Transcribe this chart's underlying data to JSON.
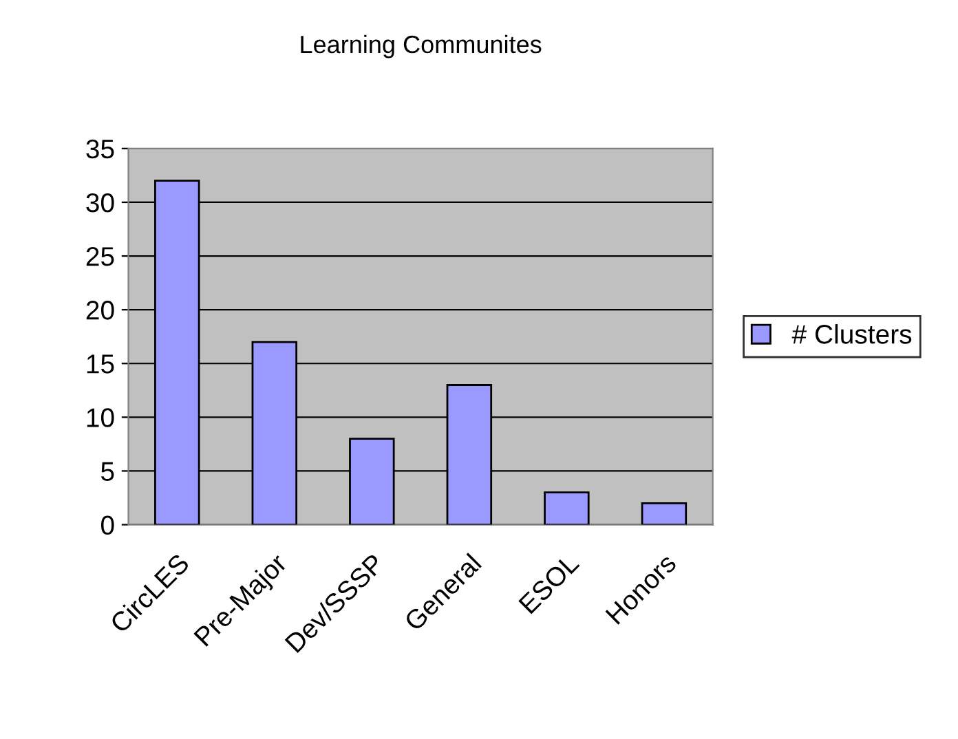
{
  "chart_data": {
    "type": "bar",
    "title": "Learning Communites",
    "categories": [
      "CircLES",
      "Pre-Major",
      "Dev/SSSP",
      "General",
      "ESOL",
      "Honors"
    ],
    "series": [
      {
        "name": "# Clusters",
        "color": "#9999ff",
        "values": [
          32,
          17,
          8,
          13,
          3,
          2
        ]
      }
    ],
    "ylim": [
      0,
      35
    ],
    "yticks": [
      0,
      5,
      10,
      15,
      20,
      25,
      30,
      35
    ],
    "grid": "y",
    "legend": "right"
  }
}
